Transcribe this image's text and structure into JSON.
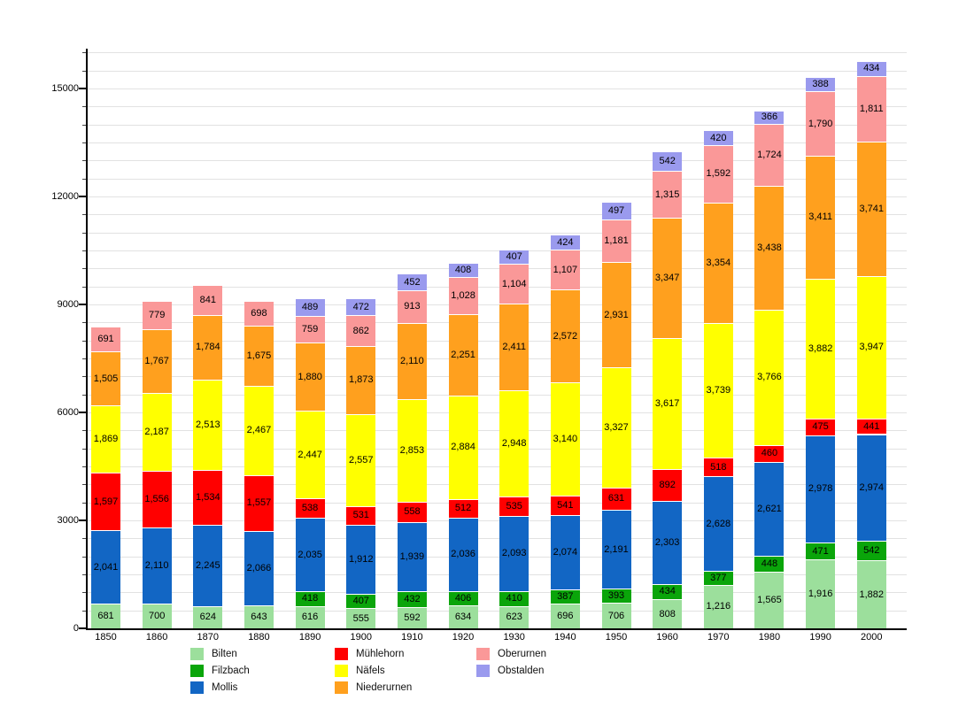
{
  "chart_data": {
    "type": "bar",
    "stacked": true,
    "title": "",
    "xlabel": "",
    "ylabel": "",
    "categories": [
      "1850",
      "1860",
      "1870",
      "1880",
      "1890",
      "1900",
      "1910",
      "1920",
      "1930",
      "1940",
      "1950",
      "1960",
      "1970",
      "1980",
      "1990",
      "2000"
    ],
    "series": [
      {
        "name": "Bilten",
        "color": "#9CDF9C",
        "values": [
          681,
          700,
          624,
          643,
          616,
          555,
          592,
          634,
          623,
          696,
          706,
          808,
          1216,
          1565,
          1916,
          1882
        ]
      },
      {
        "name": "Filzbach",
        "color": "#0AA50A",
        "values": [
          null,
          null,
          null,
          null,
          418,
          407,
          432,
          406,
          410,
          387,
          393,
          434,
          377,
          448,
          471,
          542
        ]
      },
      {
        "name": "Mollis",
        "color": "#1266C4",
        "values": [
          2041,
          2110,
          2245,
          2066,
          2035,
          1912,
          1939,
          2036,
          2093,
          2074,
          2191,
          2303,
          2628,
          2621,
          2978,
          2974
        ]
      },
      {
        "name": "Mühlehorn",
        "color": "#FF0000",
        "values": [
          1597,
          1556,
          1534,
          1557,
          538,
          531,
          558,
          512,
          535,
          541,
          631,
          892,
          518,
          460,
          475,
          441
        ]
      },
      {
        "name": "Näfels",
        "color": "#FFFF00",
        "values": [
          1869,
          2187,
          2513,
          2467,
          2447,
          2557,
          2853,
          2884,
          2948,
          3140,
          3327,
          3617,
          3739,
          3766,
          3882,
          3947
        ]
      },
      {
        "name": "Niederurnen",
        "color": "#FFA01E",
        "values": [
          1505,
          1767,
          1784,
          1675,
          1880,
          1873,
          2110,
          2251,
          2411,
          2572,
          2931,
          3347,
          3354,
          3438,
          3411,
          3741
        ]
      },
      {
        "name": "Oberurnen",
        "color": "#FA9898",
        "values": [
          691,
          779,
          841,
          698,
          759,
          862,
          913,
          1028,
          1104,
          1107,
          1181,
          1315,
          1592,
          1724,
          1790,
          1811
        ]
      },
      {
        "name": "Obstalden",
        "color": "#9A9AEE",
        "values": [
          null,
          null,
          null,
          null,
          489,
          472,
          452,
          408,
          407,
          424,
          497,
          542,
          420,
          366,
          388,
          434
        ]
      }
    ],
    "ylim": [
      0,
      16100
    ],
    "yticks_major": [
      0,
      3000,
      6000,
      9000,
      12000,
      15000
    ],
    "ytick_minor_step": 500,
    "grid": "horizontal-light-gray",
    "value_labels": "inside-segments-with-thousands-comma",
    "legend_position": "bottom",
    "legend_columns": [
      [
        "Bilten",
        "Filzbach",
        "Mollis"
      ],
      [
        "Mühlehorn",
        "Näfels",
        "Niederurnen"
      ],
      [
        "Oberurnen",
        "Obstalden"
      ]
    ]
  },
  "colors": {
    "background": "#ffffff",
    "gridline": "#e2e2e2",
    "axis": "#000000",
    "label_text": "#000000"
  }
}
